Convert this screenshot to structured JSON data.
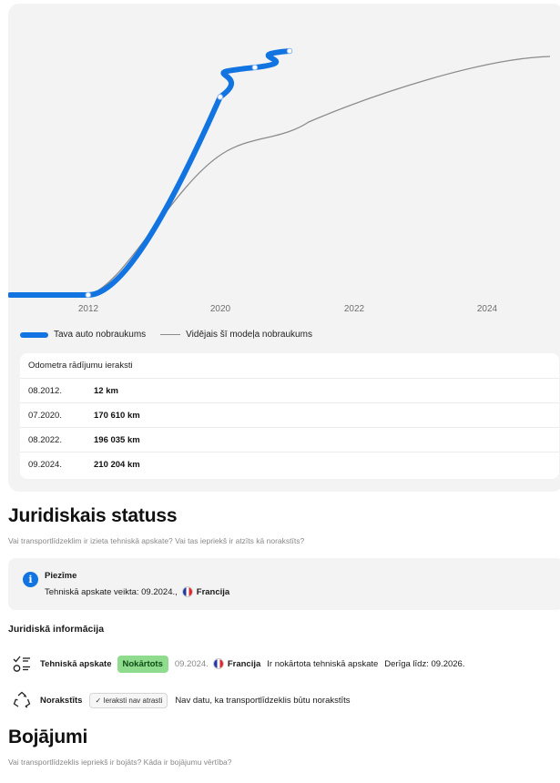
{
  "chart_data": {
    "type": "line",
    "x_ticks": [
      "2012",
      "2020",
      "2022",
      "2024"
    ],
    "series": [
      {
        "name": "Tava auto nobraukums",
        "color": "#1274e1",
        "points": [
          {
            "date": "08.2012.",
            "km": 12
          },
          {
            "date": "07.2020.",
            "km": 170610
          },
          {
            "date": "08.2022.",
            "km": 196035
          },
          {
            "date": "09.2024.",
            "km": 210204
          }
        ]
      },
      {
        "name": "Vidējais šī modeļa nobraukums",
        "color": "#8b8b8b"
      }
    ]
  },
  "legend": {
    "series1": "Tava auto nobraukums",
    "series2": "Vidējais šī modeļa nobraukums"
  },
  "odometer": {
    "title": "Odometra rādījumu ieraksti",
    "rows": [
      {
        "date": "08.2012.",
        "value": "12 km"
      },
      {
        "date": "07.2020.",
        "value": "170 610 km"
      },
      {
        "date": "08.2022.",
        "value": "196 035 km"
      },
      {
        "date": "09.2024.",
        "value": "210 204 km"
      }
    ]
  },
  "legal": {
    "title": "Juridiskais statuss",
    "question": "Vai transportlīdzeklim ir izieta tehniskā apskate? Vai tas iepriekš ir atzīts kā norakstīts?",
    "note_title": "Piezīme",
    "note_text": "Tehniskā apskate veikta: 09.2024.,",
    "note_country": "Francija",
    "info_title": "Juridiskā informācija",
    "inspection": {
      "label": "Tehniskā apskate",
      "badge": "Nokārtots",
      "date": "09.2024.",
      "country": "Francija",
      "status": "Ir nokārtota tehniskā apskate",
      "valid": "Derīga līdz: 09.2026."
    },
    "scrapped": {
      "label": "Norakstīts",
      "badge": "✓ Ieraksti nav atrasti",
      "text": "Nav datu, ka transportlīdzeklis būtu norakstīts"
    }
  },
  "damage": {
    "title": "Bojājumi",
    "question": "Vai transportlīdzeklis iepriekš ir bojāts? Kāda ir bojājumu vērtība?"
  }
}
